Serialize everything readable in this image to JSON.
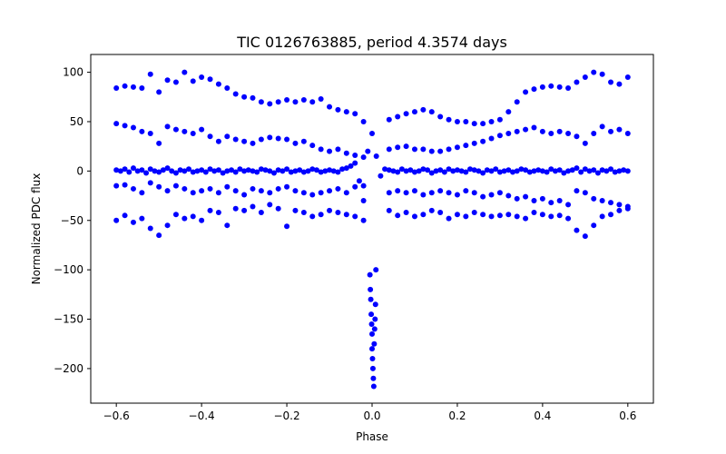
{
  "chart_data": {
    "type": "scatter",
    "title": "TIC 0126763885, period 4.3574 days",
    "xlabel": "Phase",
    "ylabel": "Normalized PDC flux",
    "xlim": [
      -0.66,
      0.66
    ],
    "ylim": [
      -235,
      118
    ],
    "xticks": [
      -0.6,
      -0.4,
      -0.2,
      0.0,
      0.2,
      0.4,
      0.6
    ],
    "xtick_labels": [
      "−0.6",
      "−0.4",
      "−0.2",
      "0.0",
      "0.2",
      "0.4",
      "0.6"
    ],
    "yticks": [
      100,
      50,
      0,
      -50,
      -100,
      -150,
      -200
    ],
    "ytick_labels": [
      "100",
      "50",
      "0",
      "−50",
      "−100",
      "−150",
      "−200"
    ],
    "grid": false,
    "marker_color": "#0000ff",
    "series": [
      {
        "x": [
          -0.6,
          -0.59,
          -0.58,
          -0.57,
          -0.56,
          -0.55,
          -0.54,
          -0.53,
          -0.52,
          -0.51,
          -0.5,
          -0.49,
          -0.48,
          -0.47,
          -0.46,
          -0.45,
          -0.44,
          -0.43,
          -0.42,
          -0.41,
          -0.4,
          -0.39,
          -0.38,
          -0.37,
          -0.36,
          -0.35,
          -0.34,
          -0.33,
          -0.32,
          -0.31,
          -0.3,
          -0.29,
          -0.28,
          -0.27,
          -0.26,
          -0.25,
          -0.24,
          -0.23,
          -0.22,
          -0.21,
          -0.2,
          -0.19,
          -0.18,
          -0.17,
          -0.16,
          -0.15,
          -0.14,
          -0.13,
          -0.12,
          -0.11,
          -0.1,
          -0.09,
          -0.08,
          -0.07,
          -0.06,
          -0.05,
          -0.04,
          -0.03,
          -0.02,
          -0.01,
          0.0,
          0.01,
          0.02,
          0.03,
          0.04,
          0.05,
          0.06,
          0.07,
          0.08,
          0.09,
          0.1,
          0.11,
          0.12,
          0.13,
          0.14,
          0.15,
          0.16,
          0.17,
          0.18,
          0.19,
          0.2,
          0.21,
          0.22,
          0.23,
          0.24,
          0.25,
          0.26,
          0.27,
          0.28,
          0.29,
          0.3,
          0.31,
          0.32,
          0.33,
          0.34,
          0.35,
          0.36,
          0.37,
          0.38,
          0.39,
          0.4,
          0.41,
          0.42,
          0.43,
          0.44,
          0.45,
          0.46,
          0.47,
          0.48,
          0.49,
          0.5,
          0.51,
          0.52,
          0.53,
          0.54,
          0.55,
          0.56,
          0.57,
          0.58,
          0.59,
          0.6
        ],
        "y": [
          1,
          0,
          2,
          -1,
          3,
          0,
          1,
          -2,
          2,
          0,
          -1,
          1,
          3,
          0,
          -2,
          1,
          0,
          2,
          -1,
          0,
          1,
          -1,
          2,
          0,
          1,
          -2,
          0,
          1,
          -1,
          2,
          0,
          1,
          0,
          -1,
          2,
          1,
          0,
          -2,
          1,
          0,
          2,
          -1,
          0,
          1,
          -1,
          0,
          2,
          1,
          -1,
          0,
          1,
          0,
          -1,
          2,
          3,
          5,
          8,
          -10,
          -30,
          20,
          38,
          15,
          -5,
          2,
          1,
          0,
          -1,
          2,
          0,
          1,
          -1,
          0,
          2,
          1,
          -2,
          0,
          1,
          -1,
          2,
          0,
          1,
          0,
          -1,
          2,
          1,
          0,
          -2,
          1,
          0,
          2,
          -1,
          0,
          1,
          -1,
          0,
          2,
          1,
          -1,
          0,
          1,
          0,
          -1,
          2,
          0,
          1,
          -2,
          0,
          1,
          3,
          -1,
          2,
          0,
          1,
          -2,
          1,
          0,
          2,
          -1,
          0,
          1,
          0
        ]
      },
      {
        "x": [
          -0.6,
          -0.58,
          -0.56,
          -0.54,
          -0.52,
          -0.5,
          -0.48,
          -0.46,
          -0.44,
          -0.42,
          -0.4,
          -0.38,
          -0.36,
          -0.34,
          -0.32,
          -0.3,
          -0.28,
          -0.26,
          -0.24,
          -0.22,
          -0.2,
          -0.18,
          -0.16,
          -0.14,
          -0.12,
          -0.1,
          -0.08,
          -0.06,
          -0.04,
          -0.02
        ],
        "y": [
          84,
          86,
          85,
          84,
          98,
          80,
          92,
          90,
          100,
          91,
          95,
          93,
          88,
          84,
          78,
          75,
          74,
          70,
          68,
          70,
          72,
          70,
          72,
          70,
          73,
          65,
          62,
          60,
          58,
          50
        ]
      },
      {
        "x": [
          0.04,
          0.06,
          0.08,
          0.1,
          0.12,
          0.14,
          0.16,
          0.18,
          0.2,
          0.22,
          0.24,
          0.26,
          0.28,
          0.3,
          0.32,
          0.34,
          0.36,
          0.38,
          0.4,
          0.42,
          0.44,
          0.46,
          0.48,
          0.5,
          0.52,
          0.54,
          0.56,
          0.58,
          0.6
        ],
        "y": [
          52,
          55,
          58,
          60,
          62,
          60,
          55,
          52,
          50,
          50,
          48,
          48,
          50,
          52,
          60,
          70,
          80,
          83,
          85,
          86,
          85,
          84,
          90,
          95,
          100,
          98,
          90,
          88,
          95
        ]
      },
      {
        "x": [
          -0.6,
          -0.58,
          -0.56,
          -0.54,
          -0.52,
          -0.5,
          -0.48,
          -0.46,
          -0.44,
          -0.42,
          -0.4,
          -0.38,
          -0.36,
          -0.34,
          -0.32,
          -0.3,
          -0.28,
          -0.26,
          -0.24,
          -0.22,
          -0.2,
          -0.18,
          -0.16,
          -0.14,
          -0.12,
          -0.1,
          -0.08,
          -0.06,
          -0.04,
          -0.02
        ],
        "y": [
          48,
          46,
          44,
          40,
          38,
          28,
          45,
          42,
          40,
          38,
          42,
          35,
          30,
          35,
          32,
          30,
          28,
          32,
          34,
          33,
          32,
          28,
          30,
          26,
          22,
          20,
          22,
          18,
          16,
          14
        ]
      },
      {
        "x": [
          0.04,
          0.06,
          0.08,
          0.1,
          0.12,
          0.14,
          0.16,
          0.18,
          0.2,
          0.22,
          0.24,
          0.26,
          0.28,
          0.3,
          0.32,
          0.34,
          0.36,
          0.38,
          0.4,
          0.42,
          0.44,
          0.46,
          0.48,
          0.5,
          0.52,
          0.54,
          0.56,
          0.58,
          0.6
        ],
        "y": [
          22,
          24,
          25,
          22,
          22,
          20,
          20,
          22,
          24,
          26,
          28,
          30,
          33,
          36,
          38,
          40,
          42,
          44,
          40,
          38,
          40,
          38,
          35,
          28,
          38,
          45,
          40,
          42,
          38
        ]
      },
      {
        "x": [
          -0.6,
          -0.58,
          -0.56,
          -0.54,
          -0.52,
          -0.5,
          -0.48,
          -0.46,
          -0.44,
          -0.42,
          -0.4,
          -0.38,
          -0.36,
          -0.34,
          -0.32,
          -0.3,
          -0.28,
          -0.26,
          -0.24,
          -0.22,
          -0.2,
          -0.18,
          -0.16,
          -0.14,
          -0.12,
          -0.1,
          -0.08,
          -0.06,
          -0.04,
          -0.02
        ],
        "y": [
          -15,
          -14,
          -18,
          -22,
          -12,
          -16,
          -20,
          -15,
          -18,
          -22,
          -20,
          -18,
          -22,
          -16,
          -20,
          -24,
          -18,
          -20,
          -22,
          -18,
          -16,
          -20,
          -22,
          -24,
          -22,
          -20,
          -18,
          -22,
          -16,
          -15
        ]
      },
      {
        "x": [
          0.04,
          0.06,
          0.08,
          0.1,
          0.12,
          0.14,
          0.16,
          0.18,
          0.2,
          0.22,
          0.24,
          0.26,
          0.28,
          0.3,
          0.32,
          0.34,
          0.36,
          0.38,
          0.4,
          0.42,
          0.44,
          0.46,
          0.48,
          0.5,
          0.52,
          0.54,
          0.56,
          0.58,
          0.6
        ],
        "y": [
          -22,
          -20,
          -22,
          -20,
          -24,
          -22,
          -20,
          -22,
          -24,
          -20,
          -22,
          -26,
          -24,
          -22,
          -25,
          -28,
          -26,
          -30,
          -28,
          -32,
          -30,
          -34,
          -20,
          -22,
          -28,
          -30,
          -32,
          -34,
          -36
        ]
      },
      {
        "x": [
          -0.6,
          -0.58,
          -0.56,
          -0.54,
          -0.52,
          -0.5,
          -0.48,
          -0.46,
          -0.44,
          -0.42,
          -0.4,
          -0.38,
          -0.36,
          -0.34,
          -0.32,
          -0.3,
          -0.28,
          -0.26,
          -0.24,
          -0.22,
          -0.2,
          -0.18,
          -0.16,
          -0.14,
          -0.12,
          -0.1,
          -0.08,
          -0.06,
          -0.04,
          -0.02
        ],
        "y": [
          -50,
          -45,
          -52,
          -48,
          -58,
          -65,
          -55,
          -44,
          -48,
          -46,
          -50,
          -40,
          -42,
          -55,
          -38,
          -40,
          -36,
          -42,
          -34,
          -38,
          -56,
          -40,
          -42,
          -46,
          -44,
          -40,
          -42,
          -44,
          -46,
          -50
        ]
      },
      {
        "x": [
          0.04,
          0.06,
          0.08,
          0.1,
          0.12,
          0.14,
          0.16,
          0.18,
          0.2,
          0.22,
          0.24,
          0.26,
          0.28,
          0.3,
          0.32,
          0.34,
          0.36,
          0.38,
          0.4,
          0.42,
          0.44,
          0.46,
          0.48,
          0.5,
          0.52,
          0.54,
          0.56,
          0.58,
          0.6
        ],
        "y": [
          -40,
          -45,
          -42,
          -46,
          -44,
          -40,
          -42,
          -48,
          -44,
          -46,
          -42,
          -44,
          -46,
          -45,
          -44,
          -46,
          -48,
          -42,
          -44,
          -46,
          -45,
          -48,
          -60,
          -66,
          -55,
          -46,
          -44,
          -40,
          -38
        ]
      },
      {
        "x": [
          -0.005,
          -0.004,
          -0.003,
          -0.002,
          -0.001,
          0.0,
          0.0,
          0.001,
          0.002,
          0.003,
          0.004,
          0.005,
          0.006,
          0.007,
          0.008,
          0.009
        ],
        "y": [
          -105,
          -120,
          -130,
          -145,
          -155,
          -165,
          -180,
          -190,
          -200,
          -210,
          -218,
          -175,
          -160,
          -150,
          -135,
          -100
        ]
      }
    ]
  }
}
